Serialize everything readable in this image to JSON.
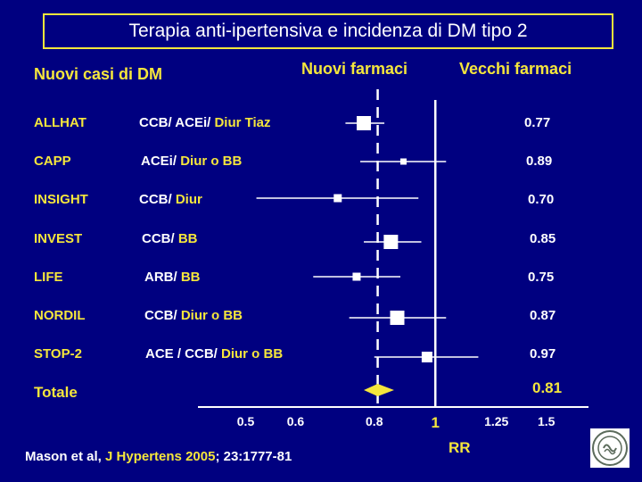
{
  "title": "Terapia anti-ipertensiva e incidenza di DM tipo 2",
  "header": {
    "left": "Nuovi casi di  DM",
    "new_drugs": "Nuovi farmaci",
    "old_drugs": "Vecchi farmaci"
  },
  "totale_label": "Totale",
  "reference": {
    "authors": "Mason et al, ",
    "journal": "J Hypertens 2005",
    "rest": "; 23:1777-81"
  },
  "logo_icon": "university-seal-icon",
  "chart_data": {
    "type": "forest",
    "xlabel": "RR",
    "x_ticks": [
      {
        "value": 0.5,
        "label": "0.5"
      },
      {
        "value": 0.6,
        "label": "0.6"
      },
      {
        "value": 0.8,
        "label": "0.8"
      },
      {
        "value": 1,
        "label": "1"
      },
      {
        "value": 1.25,
        "label": "1.25"
      },
      {
        "value": 1.5,
        "label": "1.5"
      }
    ],
    "x_scale": "log",
    "xlim": [
      0.42,
      1.75
    ],
    "reference_line": 1,
    "pooled_line": 0.81,
    "studies": [
      {
        "name": "ALLHAT",
        "drugs_white": "CCB/ ACEi/ ",
        "drugs_yellow": "Diur Tiaz",
        "rr": 0.77,
        "rr_label": "0.77",
        "ci": [
          0.72,
          0.83
        ]
      },
      {
        "name": "CAPP",
        "drugs_white": "ACEi/ ",
        "drugs_yellow": "Diur o BB",
        "rr": 0.89,
        "rr_label": "0.89",
        "ci": [
          0.76,
          1.04
        ]
      },
      {
        "name": "INSIGHT",
        "drugs_white": "CCB/ ",
        "drugs_yellow": "Diur",
        "rr": 0.7,
        "rr_label": "0.70",
        "ci": [
          0.52,
          0.94
        ]
      },
      {
        "name": "INVEST",
        "drugs_white": "CCB/ ",
        "drugs_yellow": "BB",
        "rr": 0.85,
        "rr_label": "0.85",
        "ci": [
          0.77,
          0.95
        ]
      },
      {
        "name": "LIFE",
        "drugs_white": "ARB/ ",
        "drugs_yellow": "BB",
        "rr": 0.75,
        "rr_label": "0.75",
        "ci": [
          0.64,
          0.88
        ]
      },
      {
        "name": "NORDIL",
        "drugs_white": "CCB/ ",
        "drugs_yellow": "Diur o BB",
        "rr": 0.87,
        "rr_label": "0.87",
        "ci": [
          0.73,
          1.04
        ]
      },
      {
        "name": "STOP-2",
        "drugs_white": "ACE / CCB/ ",
        "drugs_yellow": "Diur o BB",
        "rr": 0.97,
        "rr_label": "0.97",
        "ci": [
          0.8,
          1.17
        ]
      }
    ],
    "total": {
      "rr": 0.81,
      "rr_label": "0.81",
      "ci": [
        0.77,
        0.86
      ]
    }
  }
}
